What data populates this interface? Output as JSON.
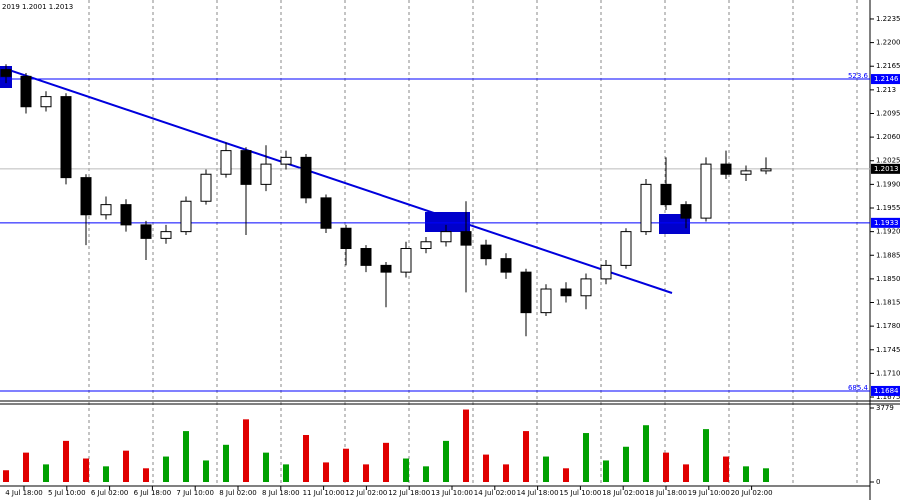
{
  "chart_data": {
    "type": "candlestick",
    "title": "2019 1.2001 1.2013",
    "open": [
      1.216,
      1.215,
      1.2105,
      1.212,
      1.2,
      1.1945,
      1.196,
      1.193,
      1.191,
      1.192,
      1.1965,
      1.2005,
      1.204,
      1.199,
      1.202,
      1.203,
      1.197,
      1.1925,
      1.1895,
      1.187,
      1.186,
      1.1895,
      1.1905,
      1.192,
      1.19,
      1.188,
      1.186,
      1.18,
      1.1835,
      1.1825,
      1.185,
      1.187,
      1.192,
      1.199,
      1.196,
      1.194,
      1.202,
      1.2005,
      1.201
    ],
    "high": [
      1.2168,
      1.2155,
      1.2128,
      1.2125,
      1.2005,
      1.1972,
      1.1968,
      1.1936,
      1.193,
      1.1972,
      1.2012,
      1.2052,
      1.2045,
      1.2048,
      1.204,
      1.2035,
      1.1975,
      1.193,
      1.19,
      1.1875,
      1.1905,
      1.1912,
      1.193,
      1.1965,
      1.1908,
      1.1888,
      1.1865,
      1.1842,
      1.1845,
      1.1858,
      1.1878,
      1.1925,
      1.1998,
      1.203,
      1.1965,
      1.203,
      1.204,
      1.2018,
      1.203
    ],
    "low": [
      1.214,
      1.2095,
      1.2098,
      1.199,
      1.19,
      1.1938,
      1.192,
      1.1878,
      1.1902,
      1.1915,
      1.196,
      1.2,
      1.1915,
      1.198,
      1.2012,
      1.1962,
      1.1918,
      1.187,
      1.186,
      1.1808,
      1.1852,
      1.1888,
      1.1898,
      1.183,
      1.187,
      1.185,
      1.1765,
      1.1795,
      1.1815,
      1.1805,
      1.1842,
      1.1865,
      1.1915,
      1.1952,
      1.1925,
      1.1935,
      1.1998,
      1.1995,
      1.2005
    ],
    "close": [
      1.215,
      1.2105,
      1.212,
      1.2,
      1.1945,
      1.196,
      1.193,
      1.191,
      1.192,
      1.1965,
      1.2005,
      1.204,
      1.199,
      1.202,
      1.203,
      1.197,
      1.1925,
      1.1895,
      1.187,
      1.186,
      1.1895,
      1.1905,
      1.192,
      1.19,
      1.188,
      1.186,
      1.18,
      1.1835,
      1.1825,
      1.185,
      1.187,
      1.192,
      1.199,
      1.196,
      1.194,
      1.202,
      1.2005,
      1.201,
      1.2013
    ],
    "volume": [
      600,
      1500,
      900,
      2100,
      1200,
      800,
      1600,
      700,
      1300,
      2600,
      1100,
      1900,
      3200,
      1500,
      900,
      2400,
      1000,
      1700,
      900,
      2000,
      1200,
      800,
      2100,
      3700,
      1400,
      900,
      2600,
      1300,
      700,
      2500,
      1100,
      1800,
      2900,
      1500,
      900,
      2700,
      1300,
      800,
      700
    ],
    "up_color": "#00a000",
    "down_color": "#e00000",
    "level_color": "#0000ff",
    "xtick_labels": [
      "4 Jul 18:00",
      "5 Jul 10:00",
      "6 Jul 02:00",
      "6 Jul 18:00",
      "7 Jul 10:00",
      "8 Jul 02:00",
      "8 Jul 18:00",
      "11 Jul 10:00",
      "12 Jul 02:00",
      "12 Jul 18:00",
      "13 Jul 10:00",
      "14 Jul 02:00",
      "14 Jul 18:00",
      "15 Jul 10:00",
      "18 Jul 02:00",
      "18 Jul 18:00",
      "19 Jul 10:00",
      "20 Jul 02:00"
    ],
    "ylim": [
      1.16706,
      1.22631
    ],
    "yticks": [
      1.2235,
      {
        "value": 1.22,
        "label": "1.2200"
      },
      1.2165,
      1.213,
      1.2095,
      {
        "value": 1.206,
        "label": "1.2060"
      },
      1.2025,
      {
        "value": 1.199,
        "label": "1.1990"
      },
      1.1955,
      {
        "value": 1.192,
        "label": "1.1920"
      },
      1.1885,
      {
        "value": 1.185,
        "label": "1.1850"
      },
      1.1815,
      {
        "value": 1.178,
        "label": "1.1780"
      },
      1.1745,
      {
        "value": 1.171,
        "label": "1.1710"
      },
      1.1675
    ],
    "levels": [
      {
        "value": 1.2146,
        "tag": "523.6"
      },
      {
        "value": 1.1933
      },
      {
        "value": 1.1684,
        "tag": "685.4"
      }
    ],
    "last_price": 1.2013,
    "vlim": [
      0,
      3779
    ],
    "vticks": [
      3779,
      0
    ]
  }
}
